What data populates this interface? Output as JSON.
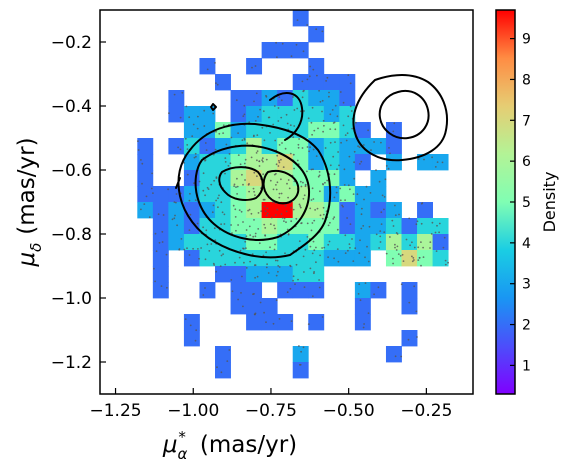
{
  "chart_data": {
    "type": "heatmap",
    "xlabel": "(mas/yr)",
    "ylabel": "(mas/yr)",
    "xlabel_symbol": "μ",
    "xlabel_sub": "α",
    "xlabel_sup": "*",
    "ylabel_symbol": "μ",
    "ylabel_sub": "δ",
    "xlim": [
      -1.3,
      -0.1
    ],
    "ylim": [
      -1.3,
      -0.1
    ],
    "xticks": [
      {
        "value": -1.25,
        "label": "−1.25"
      },
      {
        "value": -1.0,
        "label": "−1.00"
      },
      {
        "value": -0.75,
        "label": "−0.75"
      },
      {
        "value": -0.5,
        "label": "−0.50"
      },
      {
        "value": -0.25,
        "label": "−0.25"
      }
    ],
    "yticks": [
      {
        "value": -0.2,
        "label": "−0.2"
      },
      {
        "value": -0.4,
        "label": "−0.4"
      },
      {
        "value": -0.6,
        "label": "−0.6"
      },
      {
        "value": -0.8,
        "label": "−0.8"
      },
      {
        "value": -1.0,
        "label": "−1.0"
      },
      {
        "value": -1.2,
        "label": "−1.2"
      }
    ],
    "colorbar": {
      "label": "Density",
      "colormap": "rainbow",
      "range": [
        0.3,
        9.7
      ],
      "ticks": [
        1,
        2,
        3,
        4,
        5,
        6,
        7,
        8,
        9
      ],
      "tick_labels": [
        "1",
        "2",
        "3",
        "4",
        "5",
        "6",
        "7",
        "8",
        "9"
      ]
    },
    "grid": false,
    "bin_size": 0.05,
    "x_bin_start": -1.28,
    "y_bin_start": -1.25,
    "bin_rows": [
      ".......................",
      ".......................",
      "..........B2...........",
      "............2..........",
      ".............2.........",
      "..........222..........",
      "......2..2...2.........",
      ".......2....2222.......",
      "....2...22324332.......",
      "....233.23444434.......",
      ".....335344445542.2....",
      "..2.242346455343332....",
      "..2..344566753432.3.33.",
      "..2..24467665553.3.....",
      "..2223445666653533.....",
      "..32323456AA6652323.2..",
      "...2324455655552334244.",
      "...2344445544544346462.",
      "...2.244444444333.5754.",
      "...2...2233344.........",
      "...2..2.22.222..32.2...",
      "........222.....2..2...",
      ".....2...222.2..2......",
      ".....2.............2...",
      ".......2....3.....2....",
      ".......2....2.........."
    ],
    "contours_visible": true,
    "scatter_points_visible": true
  }
}
